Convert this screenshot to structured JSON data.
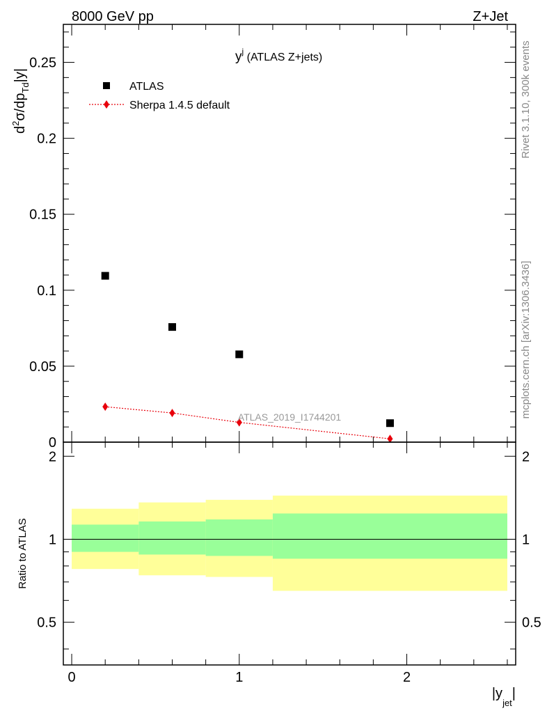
{
  "header": {
    "left_label": "8000 GeV pp",
    "right_label": "Z+Jet",
    "side_label_top": "Rivet 3.1.10,  300k events",
    "side_label_bottom": "mcplots.cern.ch [arXiv:1306.3436]",
    "analysis_label": "ATLAS_2019_I1744201"
  },
  "chart_data": [
    {
      "type": "scatter",
      "title_main": "y",
      "title_sup": "j",
      "title_rest": " (ATLAS Z+jets)",
      "ylabel": "d²σ/dp_Td|y|",
      "xlim": [
        -0.05,
        2.65
      ],
      "ylim": [
        0,
        0.275
      ],
      "yticks": [
        0,
        0.05,
        0.1,
        0.15,
        0.2,
        0.25
      ],
      "ytick_labels": [
        "0",
        "0.05",
        "0.1",
        "0.15",
        "0.2",
        "0.25"
      ],
      "legend": {
        "placement": "top-left"
      },
      "series": [
        {
          "name": "ATLAS",
          "marker": "square",
          "color": "#000000",
          "x": [
            0.2,
            0.6,
            1.0,
            1.9
          ],
          "y": [
            0.1095,
            0.0758,
            0.0578,
            0.0125
          ]
        },
        {
          "name": "Sherpa 1.4.5 default",
          "marker": "diamond",
          "line": "dotted",
          "color": "#e8000b",
          "x": [
            0.2,
            0.6,
            1.0,
            1.9
          ],
          "y": [
            0.0233,
            0.0192,
            0.013,
            0.0022
          ]
        }
      ]
    },
    {
      "type": "area",
      "ylabel": "Ratio to ATLAS",
      "xlabel_main": "|y",
      "xlabel_sub": "jet",
      "xlabel_end": "|",
      "xlim": [
        -0.05,
        2.65
      ],
      "ylim": [
        0.35,
        2.25
      ],
      "yticks": [
        0.5,
        1,
        2
      ],
      "ytick_labels": [
        "0.5",
        "1",
        "2"
      ],
      "xticks": [
        0,
        1,
        2
      ],
      "xtick_labels": [
        "0",
        "1",
        "2"
      ],
      "reference_line": 1,
      "bands": [
        {
          "x0": 0.0,
          "x1": 0.4,
          "inner": [
            0.9,
            1.13
          ],
          "outer": [
            0.78,
            1.29
          ]
        },
        {
          "x0": 0.4,
          "x1": 0.8,
          "inner": [
            0.88,
            1.16
          ],
          "outer": [
            0.74,
            1.36
          ]
        },
        {
          "x0": 0.8,
          "x1": 1.2,
          "inner": [
            0.87,
            1.18
          ],
          "outer": [
            0.73,
            1.39
          ]
        },
        {
          "x0": 1.2,
          "x1": 2.6,
          "inner": [
            0.85,
            1.24
          ],
          "outer": [
            0.65,
            1.44
          ]
        }
      ],
      "colors": {
        "inner": "#99ff99",
        "outer": "#ffff99"
      }
    }
  ]
}
